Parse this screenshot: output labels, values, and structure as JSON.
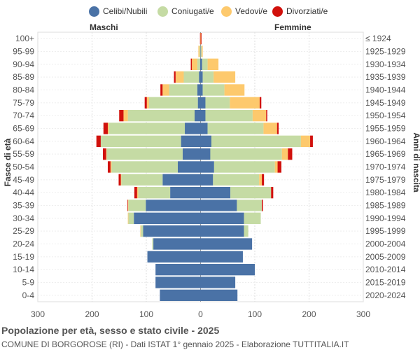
{
  "legend": [
    {
      "label": "Celibi/Nubili",
      "color": "#4a72a6"
    },
    {
      "label": "Coniugati/e",
      "color": "#c5dba4"
    },
    {
      "label": "Vedovi/e",
      "color": "#fdc96d"
    },
    {
      "label": "Divorziati/e",
      "color": "#d1110c"
    }
  ],
  "labels": {
    "males": "Maschi",
    "females": "Femmine",
    "y_left": "Fasce di età",
    "y_right": "Anni di nascita"
  },
  "footer": {
    "title": "Popolazione per età, sesso e stato civile - 2025",
    "subtitle": "COMUNE DI BORGOROSE (RI) - Dati ISTAT 1° gennaio 2025 - Elaborazione TUTTITALIA.IT"
  },
  "chart_data": {
    "type": "bar",
    "orientation": "horizontal-population-pyramid",
    "title": "Popolazione per età, sesso e stato civile - 2025",
    "xlim": [
      -300,
      300
    ],
    "x_ticks": [
      -300,
      -200,
      -100,
      0,
      100,
      200,
      300
    ],
    "x_tick_labels": [
      "300",
      "200",
      "100",
      "0",
      "100",
      "200",
      "300"
    ],
    "grid": true,
    "legend_position": "top",
    "series_order": [
      "Celibi/Nubili",
      "Coniugati/e",
      "Vedovi/e",
      "Divorziati/e"
    ],
    "series_colors": [
      "#4a72a6",
      "#c5dba4",
      "#fdc96d",
      "#d1110c"
    ],
    "age_groups": [
      "100+",
      "95-99",
      "90-94",
      "85-89",
      "80-84",
      "75-79",
      "70-74",
      "65-69",
      "60-64",
      "55-59",
      "50-54",
      "45-49",
      "40-44",
      "35-39",
      "30-34",
      "25-29",
      "20-24",
      "15-19",
      "10-14",
      "5-9",
      "0-4"
    ],
    "birth_years": [
      "≤ 1924",
      "1925-1929",
      "1930-1934",
      "1935-1939",
      "1940-1944",
      "1945-1949",
      "1950-1954",
      "1955-1959",
      "1960-1964",
      "1965-1969",
      "1970-1974",
      "1975-1979",
      "1980-1984",
      "1985-1989",
      "1990-1994",
      "1995-1999",
      "2000-2004",
      "2005-2009",
      "2010-2014",
      "2015-2019",
      "2020-2024"
    ],
    "males": [
      [
        0,
        0,
        0,
        1
      ],
      [
        0,
        2,
        2,
        0
      ],
      [
        1,
        5,
        10,
        2
      ],
      [
        3,
        28,
        15,
        3
      ],
      [
        6,
        52,
        12,
        4
      ],
      [
        5,
        90,
        4,
        4
      ],
      [
        11,
        123,
        8,
        8
      ],
      [
        29,
        140,
        2,
        8
      ],
      [
        36,
        148,
        0,
        8
      ],
      [
        33,
        140,
        1,
        6
      ],
      [
        42,
        122,
        2,
        5
      ],
      [
        70,
        76,
        1,
        4
      ],
      [
        56,
        59,
        2,
        5
      ],
      [
        101,
        32,
        1,
        1
      ],
      [
        123,
        10,
        1,
        0
      ],
      [
        106,
        4,
        1,
        0
      ],
      [
        87,
        2,
        0,
        0
      ],
      [
        98,
        0,
        0,
        0
      ],
      [
        83,
        0,
        0,
        0
      ],
      [
        83,
        0,
        0,
        0
      ],
      [
        75,
        0,
        0,
        0
      ]
    ],
    "females": [
      [
        0,
        0,
        1,
        1
      ],
      [
        1,
        1,
        2,
        0
      ],
      [
        3,
        10,
        20,
        0
      ],
      [
        4,
        20,
        40,
        0
      ],
      [
        4,
        40,
        37,
        0
      ],
      [
        9,
        45,
        55,
        3
      ],
      [
        9,
        87,
        25,
        2
      ],
      [
        13,
        103,
        25,
        3
      ],
      [
        20,
        165,
        17,
        5
      ],
      [
        18,
        132,
        11,
        8
      ],
      [
        25,
        112,
        5,
        7
      ],
      [
        23,
        85,
        5,
        4
      ],
      [
        55,
        75,
        0,
        4
      ],
      [
        67,
        46,
        0,
        2
      ],
      [
        80,
        31,
        0,
        0
      ],
      [
        80,
        8,
        0,
        0
      ],
      [
        95,
        0,
        0,
        0
      ],
      [
        78,
        0,
        0,
        0
      ],
      [
        100,
        0,
        0,
        0
      ],
      [
        64,
        0,
        0,
        0
      ],
      [
        68,
        0,
        0,
        0
      ]
    ]
  }
}
